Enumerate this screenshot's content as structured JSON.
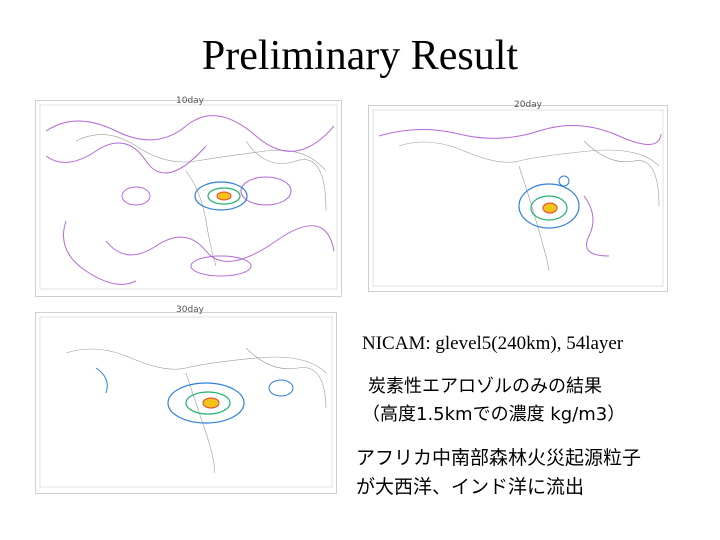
{
  "slide": {
    "title": "Preliminary Result"
  },
  "panels": [
    {
      "title": "10day"
    },
    {
      "title": "20day"
    },
    {
      "title": "30day"
    }
  ],
  "notes": {
    "model": "NICAM: glevel5(240km), 54layer",
    "result_line1": "炭素性エアロゾルのみの結果",
    "result_line2": "（高度1.5kmでの濃度 kg/m3）",
    "finding_line1": "アフリカ中南部森林火災起源粒子",
    "finding_line2": "が大西洋、インド洋に流出"
  },
  "colors": {
    "contour_purple": "#b36ad8",
    "contour_gray": "#9a9a9a",
    "plume_blue": "#2f7fd8",
    "plume_green": "#22b36b",
    "plume_yellow": "#f0c419",
    "plume_red": "#e0452f"
  }
}
